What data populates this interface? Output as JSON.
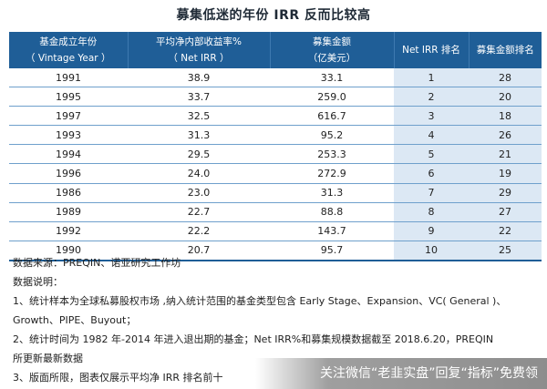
{
  "title": "募集低迷的年份 IRR 反而比较高",
  "table": {
    "headers": [
      {
        "line1": "基金成立年份",
        "line2": "（ Vintage Year ）"
      },
      {
        "line1": "平均净内部收益率%",
        "line2": "（ Net IRR ）"
      },
      {
        "line1": "募集金额",
        "line2": "（亿美元）"
      },
      {
        "line1": "Net IRR 排名",
        "line2": ""
      },
      {
        "line1": "募集金额排名",
        "line2": ""
      }
    ],
    "rows": [
      [
        "1991",
        "38.9",
        "33.1",
        "1",
        "28"
      ],
      [
        "1995",
        "33.7",
        "259.0",
        "2",
        "20"
      ],
      [
        "1997",
        "32.5",
        "616.7",
        "3",
        "18"
      ],
      [
        "1993",
        "31.3",
        "95.2",
        "4",
        "26"
      ],
      [
        "1994",
        "29.5",
        "253.3",
        "5",
        "21"
      ],
      [
        "1996",
        "24.0",
        "272.9",
        "6",
        "19"
      ],
      [
        "1986",
        "23.0",
        "31.3",
        "7",
        "29"
      ],
      [
        "1989",
        "22.7",
        "88.8",
        "8",
        "27"
      ],
      [
        "1992",
        "22.2",
        "143.7",
        "9",
        "22"
      ],
      [
        "1990",
        "20.7",
        "95.7",
        "10",
        "25"
      ]
    ]
  },
  "notes": {
    "source": "数据来源：PREQIN、诺亚研究工作坊",
    "desc_title": "数据说明：",
    "item1": "1、统计样本为全球私募股权市场 ,纳入统计范围的基金类型包含 Early Stage、Expansion、VC( General )、",
    "item1b": "Growth、PIPE、Buyout；",
    "item2": "2、统计时间为 1982 年-2014 年进入退出期的基金；Net IRR%和募集规模数据截至 2018.6.20，PREQIN",
    "item2b": "所更新最新数据",
    "item3": "3、版面所限，图表仅展示平均净 IRR 排名前十"
  },
  "watermark": "关注微信“老韭实盘”回复“指标”免费领",
  "colors": {
    "header_bg": "#1f5e97",
    "rank_bg": "#dce8f4",
    "row_border": "#6fa0cc"
  }
}
